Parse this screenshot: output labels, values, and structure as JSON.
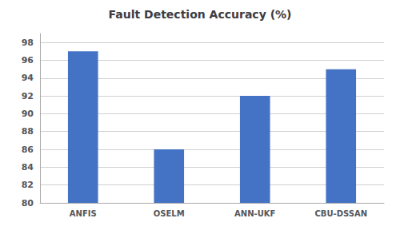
{
  "chart_data": {
    "type": "bar",
    "title": "Fault Detection Accuracy (%)",
    "categories": [
      "ANFIS",
      "OSELM",
      "ANN-UKF",
      "CBU-DSSAN"
    ],
    "values": [
      97.0,
      86.0,
      92.0,
      95.0
    ],
    "color": "#4472C4",
    "ylim": [
      80,
      99
    ],
    "yticks": [
      80,
      82,
      84,
      86,
      88,
      90,
      92,
      94,
      96,
      98
    ],
    "grid": true
  }
}
